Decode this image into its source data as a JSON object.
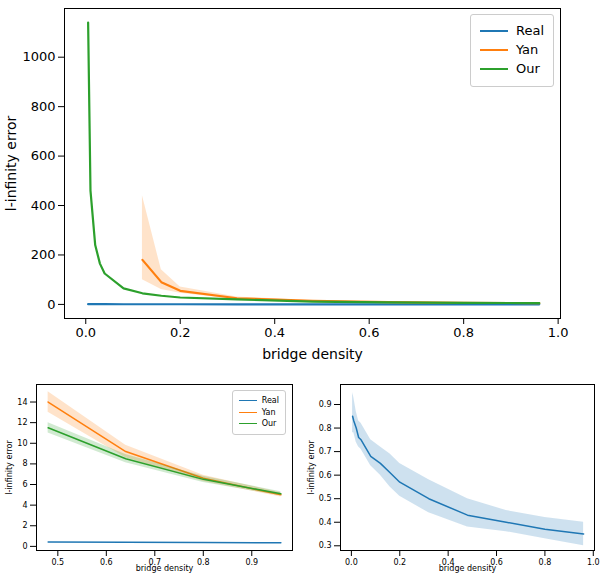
{
  "chart_data": [
    {
      "type": "line",
      "x_label": "bridge density",
      "y_label": "l-infinity error",
      "x": [
        0.005,
        0.01,
        0.02,
        0.03,
        0.04,
        0.08,
        0.12,
        0.16,
        0.2,
        0.32,
        0.48,
        0.64,
        0.8,
        0.96
      ],
      "series": [
        {
          "name": "Real",
          "color": "#1f77b4",
          "values": [
            0.85,
            0.83,
            0.8,
            0.76,
            0.75,
            0.68,
            0.65,
            0.61,
            0.57,
            0.5,
            0.43,
            0.4,
            0.37,
            0.35
          ]
        },
        {
          "name": "Yan",
          "color": "#ff7f0e",
          "values": [
            null,
            null,
            null,
            null,
            null,
            null,
            180,
            90,
            55,
            25,
            14,
            9.2,
            6.6,
            5.0
          ],
          "lower": [
            null,
            null,
            null,
            null,
            null,
            null,
            100,
            60,
            45,
            20,
            13,
            8.6,
            6.3,
            4.8
          ],
          "upper": [
            null,
            null,
            null,
            null,
            null,
            null,
            440,
            140,
            70,
            30,
            15,
            9.8,
            6.9,
            5.2
          ]
        },
        {
          "name": "Our",
          "color": "#2ca02c",
          "values": [
            1140,
            460,
            240,
            165,
            125,
            65,
            45,
            35,
            28,
            20,
            11.5,
            8.5,
            6.5,
            5.1
          ]
        }
      ],
      "xlim": [
        -0.045,
        1.005
      ],
      "xticks": [
        {
          "value": 0,
          "label": "0.0"
        },
        0.2,
        0.4,
        0.6,
        0.8,
        {
          "value": 1,
          "label": "1.0"
        }
      ],
      "ylim": [
        -57,
        1197
      ],
      "yticks": [
        0,
        200,
        400,
        600,
        800,
        1000
      ],
      "legend": "upper right"
    },
    {
      "type": "line",
      "x_label": "bridge density",
      "y_label": "l-infinity error",
      "x": [
        0.48,
        0.64,
        0.8,
        0.96
      ],
      "series": [
        {
          "name": "Real",
          "color": "#1f77b4",
          "values": [
            0.43,
            0.4,
            0.37,
            0.35
          ]
        },
        {
          "name": "Yan",
          "color": "#ff7f0e",
          "values": [
            14,
            9.2,
            6.6,
            5.0
          ],
          "lower": [
            13,
            8.6,
            6.3,
            4.8
          ],
          "upper": [
            15,
            9.8,
            6.9,
            5.2
          ]
        },
        {
          "name": "Our",
          "color": "#2ca02c",
          "values": [
            11.5,
            8.5,
            6.5,
            5.1
          ],
          "lower": [
            11,
            8.1,
            6.2,
            4.9
          ],
          "upper": [
            12,
            8.9,
            6.8,
            5.3
          ]
        }
      ],
      "xlim": [
        0.456,
        0.984
      ],
      "xticks": [
        0.5,
        0.6,
        0.7,
        0.8,
        0.9
      ],
      "ylim": [
        -0.4,
        15.7
      ],
      "yticks": [
        0,
        2,
        4,
        6,
        8,
        10,
        12,
        14
      ],
      "legend": "upper right"
    },
    {
      "type": "line",
      "x_label": "bridge density",
      "y_label": "l-infinity error",
      "x": [
        0.005,
        0.01,
        0.02,
        0.03,
        0.04,
        0.08,
        0.12,
        0.16,
        0.2,
        0.32,
        0.48,
        0.64,
        0.8,
        0.96
      ],
      "series": [
        {
          "name": "Real",
          "color": "#1f77b4",
          "values": [
            0.85,
            0.83,
            0.8,
            0.76,
            0.75,
            0.68,
            0.65,
            0.61,
            0.57,
            0.5,
            0.43,
            0.4,
            0.37,
            0.35
          ],
          "lower": [
            0.78,
            0.78,
            0.74,
            0.72,
            0.71,
            0.64,
            0.6,
            0.55,
            0.51,
            0.44,
            0.38,
            0.36,
            0.33,
            0.3
          ],
          "upper": [
            0.95,
            0.93,
            0.87,
            0.83,
            0.82,
            0.75,
            0.72,
            0.69,
            0.65,
            0.58,
            0.5,
            0.45,
            0.42,
            0.4
          ]
        }
      ],
      "xlim": [
        -0.045,
        1.005
      ],
      "xticks": [
        {
          "value": 0,
          "label": "0.0"
        },
        0.2,
        0.4,
        0.6,
        0.8,
        {
          "value": 1,
          "label": "1.0"
        }
      ],
      "ylim": [
        0.28,
        0.985
      ],
      "yticks": [
        0.3,
        0.4,
        0.5,
        0.6,
        0.7,
        0.8,
        0.9
      ]
    }
  ]
}
